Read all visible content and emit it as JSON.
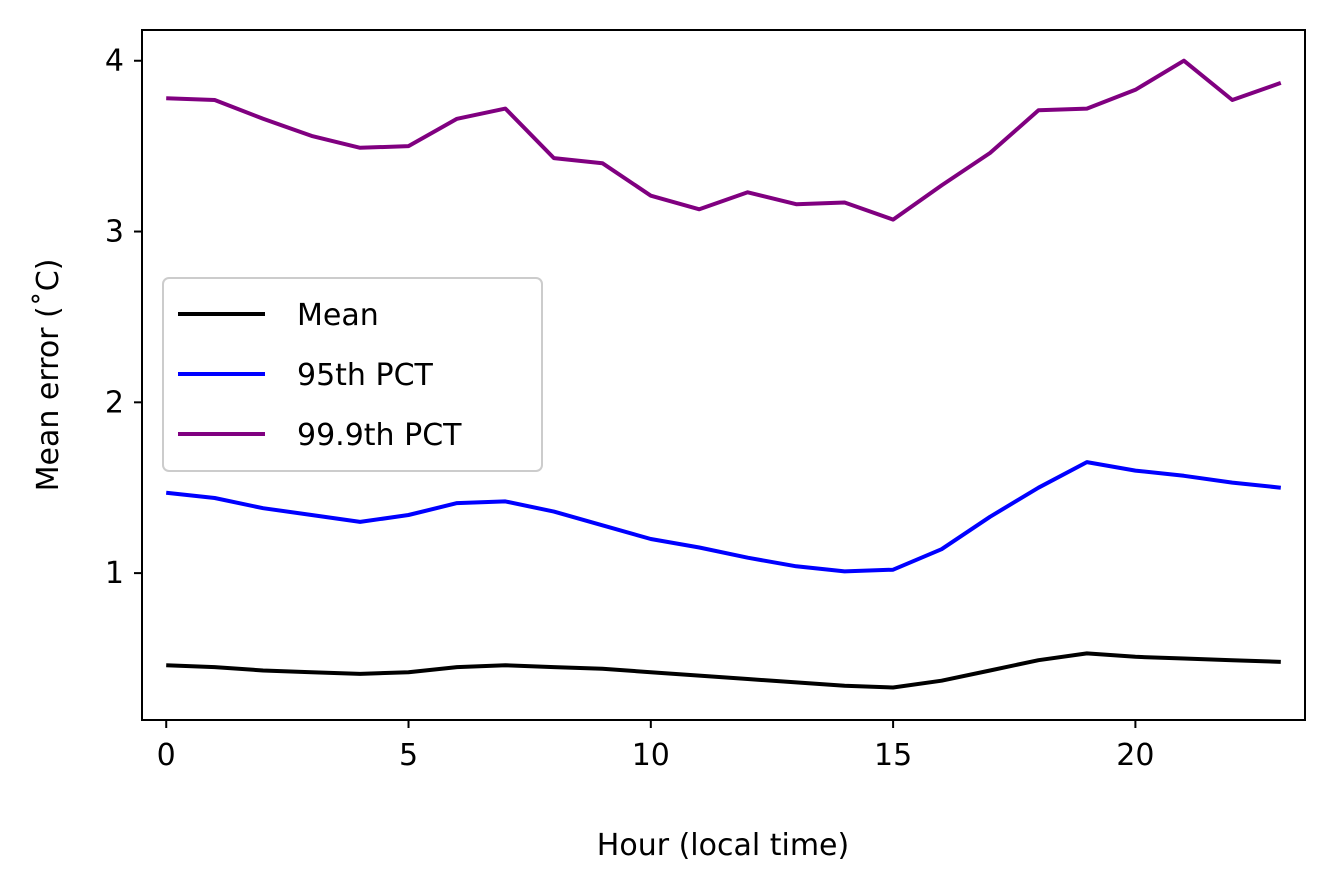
{
  "chart_data": {
    "type": "line",
    "title": "",
    "xlabel": "Hour (local time)",
    "ylabel": "Mean error (˚C)",
    "xlim": [
      -0.5,
      23.5
    ],
    "ylim": [
      0.14,
      4.18
    ],
    "xticks": [
      0,
      5,
      10,
      15,
      20
    ],
    "yticks": [
      1,
      2,
      3,
      4
    ],
    "grid": false,
    "legend_position": "center-left",
    "x": [
      0,
      1,
      2,
      3,
      4,
      5,
      6,
      7,
      8,
      9,
      10,
      11,
      12,
      13,
      14,
      15,
      16,
      17,
      18,
      19,
      20,
      21,
      22,
      23
    ],
    "series": [
      {
        "name": "Mean",
        "color": "#000000",
        "values": [
          0.46,
          0.45,
          0.43,
          0.42,
          0.41,
          0.42,
          0.45,
          0.46,
          0.45,
          0.44,
          0.42,
          0.4,
          0.38,
          0.36,
          0.34,
          0.33,
          0.37,
          0.43,
          0.49,
          0.53,
          0.51,
          0.5,
          0.49,
          0.48
        ]
      },
      {
        "name": "95th PCT",
        "color": "#0000ff",
        "values": [
          1.47,
          1.44,
          1.38,
          1.34,
          1.3,
          1.34,
          1.41,
          1.42,
          1.36,
          1.28,
          1.2,
          1.15,
          1.09,
          1.04,
          1.01,
          1.02,
          1.14,
          1.33,
          1.5,
          1.65,
          1.6,
          1.57,
          1.53,
          1.5
        ]
      },
      {
        "name": "99.9th PCT",
        "color": "#800080",
        "values": [
          3.78,
          3.77,
          3.66,
          3.56,
          3.49,
          3.5,
          3.66,
          3.72,
          3.43,
          3.4,
          3.21,
          3.13,
          3.23,
          3.16,
          3.17,
          3.07,
          3.27,
          3.46,
          3.71,
          3.72,
          3.83,
          4.0,
          3.77,
          3.87
        ]
      }
    ]
  }
}
